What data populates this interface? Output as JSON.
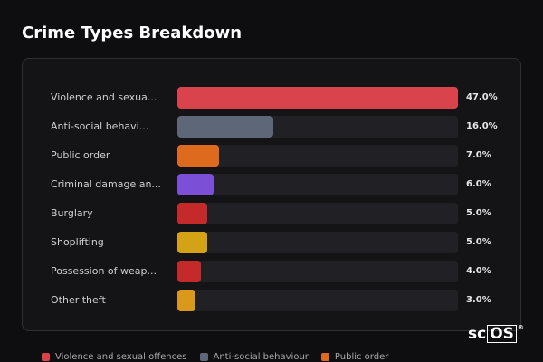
{
  "title": "Crime Types Breakdown",
  "chart_data": {
    "type": "bar",
    "orientation": "horizontal",
    "categories": [
      "Violence and sexua...",
      "Anti-social behavi...",
      "Public order",
      "Criminal damage an...",
      "Burglary",
      "Shoplifting",
      "Possession of weap...",
      "Other theft"
    ],
    "values": [
      47.0,
      16.0,
      7.0,
      6.0,
      5.0,
      5.0,
      4.0,
      3.0
    ],
    "value_labels": [
      "47.0%",
      "16.0%",
      "7.0%",
      "6.0%",
      "5.0%",
      "5.0%",
      "4.0%",
      "3.0%"
    ],
    "colors": [
      "#d9434b",
      "#5d6777",
      "#de6a1d",
      "#7b4fd6",
      "#c42a2a",
      "#d4a315",
      "#c42a2a",
      "#d99a1c"
    ],
    "xlim": [
      0,
      47.0
    ],
    "grid": false,
    "legend": "bottom",
    "legend_entries": [
      {
        "label": "Violence and sexual offences",
        "color": "#d9434b"
      },
      {
        "label": "Anti-social behaviour",
        "color": "#5d6777"
      },
      {
        "label": "Public order",
        "color": "#de6a1d"
      }
    ]
  },
  "logo": {
    "prefix": "sc",
    "boxed": "OS",
    "mark": "®"
  }
}
